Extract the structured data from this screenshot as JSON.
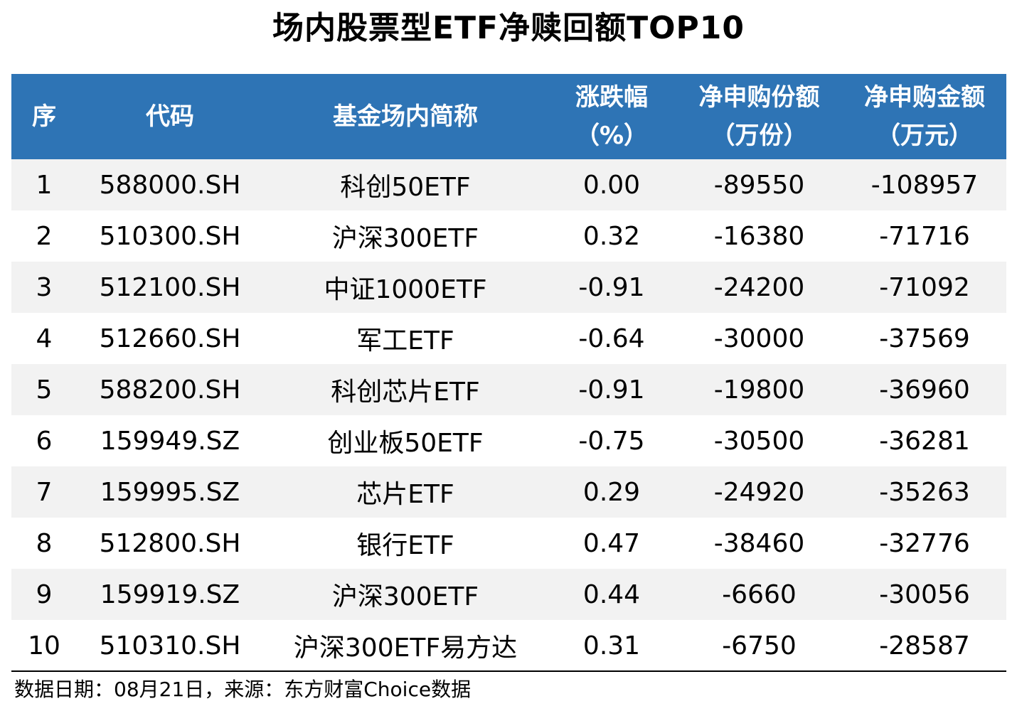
{
  "title": "场内股票型ETF净赎回额TOP10",
  "header": {
    "seq": "序",
    "code": "代码",
    "name": "基金场内简称",
    "change_line1": "涨跌幅",
    "change_line2": "（%）",
    "shares_line1": "净申购份额",
    "shares_line2": "（万份）",
    "amount_line1": "净申购金额",
    "amount_line2": "（万元）"
  },
  "colors": {
    "header_bg": "#2e74b5",
    "header_text": "#ffffff",
    "row_shade": "#f2f2f2"
  },
  "rows": [
    {
      "seq": "1",
      "code": "588000.SH",
      "name": "科创50ETF",
      "change": "0.00",
      "shares": "-89550",
      "amount": "-108957"
    },
    {
      "seq": "2",
      "code": "510300.SH",
      "name": "沪深300ETF",
      "change": "0.32",
      "shares": "-16380",
      "amount": "-71716"
    },
    {
      "seq": "3",
      "code": "512100.SH",
      "name": "中证1000ETF",
      "change": "-0.91",
      "shares": "-24200",
      "amount": "-71092"
    },
    {
      "seq": "4",
      "code": "512660.SH",
      "name": "军工ETF",
      "change": "-0.64",
      "shares": "-30000",
      "amount": "-37569"
    },
    {
      "seq": "5",
      "code": "588200.SH",
      "name": "科创芯片ETF",
      "change": "-0.91",
      "shares": "-19800",
      "amount": "-36960"
    },
    {
      "seq": "6",
      "code": "159949.SZ",
      "name": "创业板50ETF",
      "change": "-0.75",
      "shares": "-30500",
      "amount": "-36281"
    },
    {
      "seq": "7",
      "code": "159995.SZ",
      "name": "芯片ETF",
      "change": "0.29",
      "shares": "-24920",
      "amount": "-35263"
    },
    {
      "seq": "8",
      "code": "512800.SH",
      "name": "银行ETF",
      "change": "0.47",
      "shares": "-38460",
      "amount": "-32776"
    },
    {
      "seq": "9",
      "code": "159919.SZ",
      "name": "沪深300ETF",
      "change": "0.44",
      "shares": "-6660",
      "amount": "-30056"
    },
    {
      "seq": "10",
      "code": "510310.SH",
      "name": "沪深300ETF易方达",
      "change": "0.31",
      "shares": "-6750",
      "amount": "-28587"
    }
  ],
  "footer": {
    "source": "数据日期：08月21日，来源：东方财富Choice数据"
  }
}
